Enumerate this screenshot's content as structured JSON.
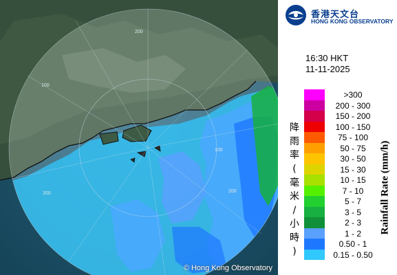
{
  "header": {
    "org_name_cn": "香港天文台",
    "org_name_en": "HONG KONG OBSERVATORY"
  },
  "time": {
    "clock": "16:30 HKT",
    "date": "11-11-2025"
  },
  "legend": {
    "title_cn": "降雨率(毫米/小時)",
    "title_en": "Rainfall Rate (mm/h)",
    "items": [
      {
        "label": ">300",
        "color": "#ff00ff"
      },
      {
        "label": "200 - 300",
        "color": "#cc00a0"
      },
      {
        "label": "150 - 200",
        "color": "#d4004a"
      },
      {
        "label": "100 - 150",
        "color": "#ee0000"
      },
      {
        "label": "75 - 100",
        "color": "#ff5a00"
      },
      {
        "label": "50 - 75",
        "color": "#ffa000"
      },
      {
        "label": "30 - 50",
        "color": "#ffc400"
      },
      {
        "label": "15 - 30",
        "color": "#ddd400"
      },
      {
        "label": "10 - 15",
        "color": "#a8e000"
      },
      {
        "label": "7 - 10",
        "color": "#55f000"
      },
      {
        "label": "5 - 7",
        "color": "#22d030"
      },
      {
        "label": "3 - 5",
        "color": "#18b040"
      },
      {
        "label": "2 - 3",
        "color": "#109038"
      },
      {
        "label": "1 - 2",
        "color": "#5aa0ff"
      },
      {
        "label": "0.50 - 1",
        "color": "#1e78ff"
      },
      {
        "label": "0.15 - 0.50",
        "color": "#30c8ff"
      }
    ]
  },
  "map": {
    "range_rings": [
      {
        "label": "200"
      },
      {
        "label": "100"
      },
      {
        "label": "200"
      },
      {
        "label": "100"
      },
      {
        "label": "200"
      }
    ],
    "credit": "© Hong Kong Observatory"
  }
}
